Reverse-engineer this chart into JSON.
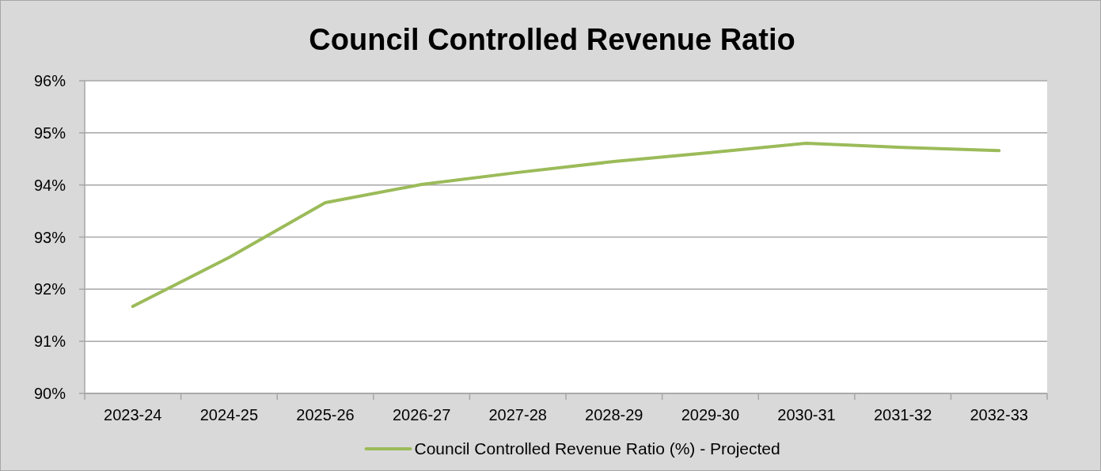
{
  "chart_data": {
    "type": "line",
    "title": "Council Controlled Revenue Ratio",
    "categories": [
      "2023-24",
      "2024-25",
      "2025-26",
      "2026-27",
      "2027-28",
      "2028-29",
      "2029-30",
      "2030-31",
      "2031-32",
      "2032-33"
    ],
    "series": [
      {
        "name": "Council Controlled Revenue Ratio (%) - Projected",
        "color": "#9bbb59",
        "values": [
          91.67,
          92.61,
          93.66,
          94.01,
          94.24,
          94.45,
          94.62,
          94.8,
          94.72,
          94.66
        ]
      }
    ],
    "ylim": [
      90,
      96
    ],
    "yticks": [
      {
        "value": 90,
        "label": "90%"
      },
      {
        "value": 91,
        "label": "91%"
      },
      {
        "value": 92,
        "label": "92%"
      },
      {
        "value": 93,
        "label": "93%"
      },
      {
        "value": 94,
        "label": "94%"
      },
      {
        "value": 95,
        "label": "95%"
      },
      {
        "value": 96,
        "label": "96%"
      }
    ],
    "grid": "y",
    "legend": "bottom",
    "marker": "none",
    "line_style": "solid"
  }
}
